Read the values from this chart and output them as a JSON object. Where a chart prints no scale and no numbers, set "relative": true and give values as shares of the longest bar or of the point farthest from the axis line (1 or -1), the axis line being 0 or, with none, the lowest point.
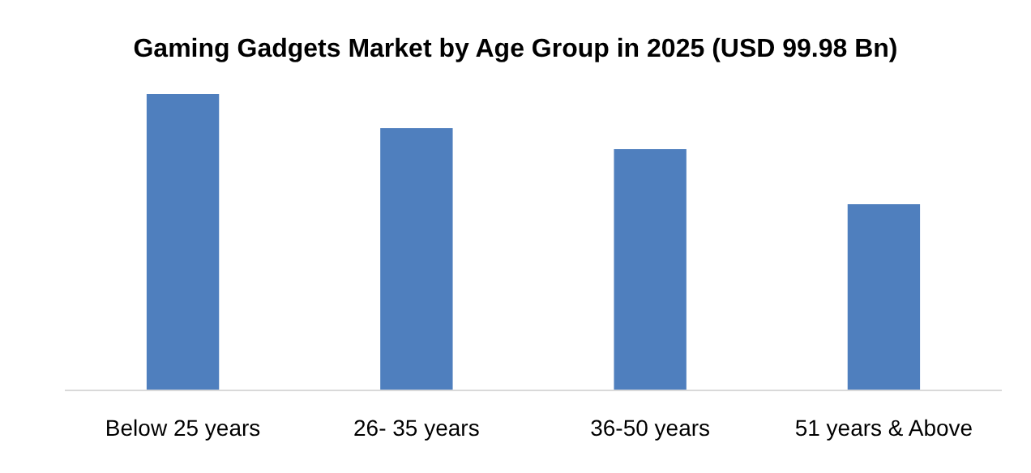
{
  "chart_data": {
    "type": "bar",
    "title": "Gaming Gadgets Market by Age Group in 2025 (USD 99.98 Bn)",
    "categories": [
      "Below 25 years",
      "26- 35 years",
      "36-50 years",
      "51 years & Above"
    ],
    "values": [
      1,
      0.885,
      0.814,
      0.628
    ],
    "color": "#4f7fbe",
    "relative": true
  }
}
